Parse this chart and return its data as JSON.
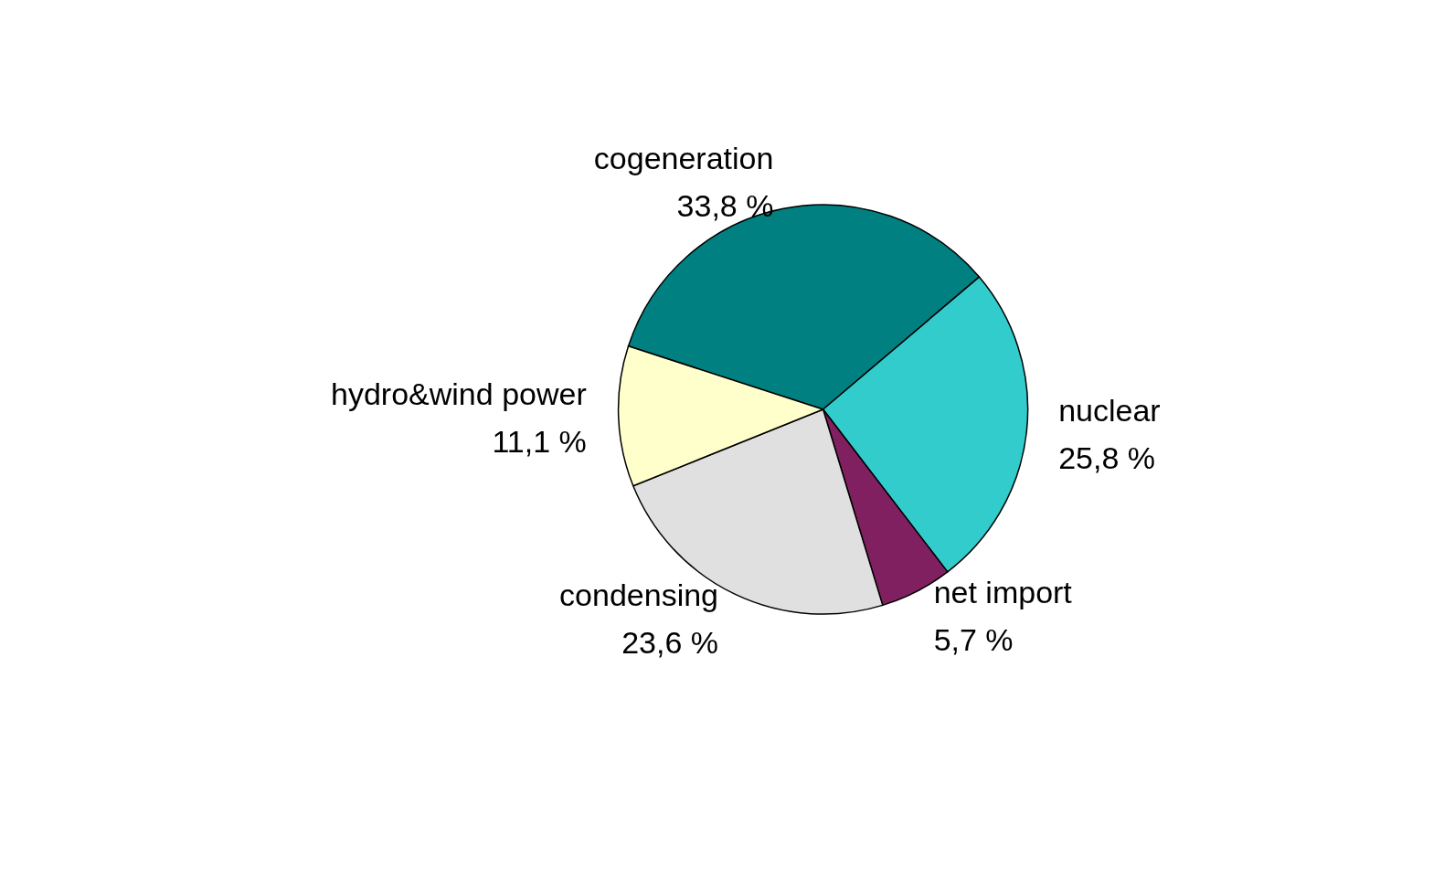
{
  "chart_data": {
    "type": "pie",
    "categories": [
      "cogeneration",
      "nuclear",
      "net import",
      "condensing",
      "hydro&wind power"
    ],
    "values": [
      33.8,
      25.8,
      5.7,
      23.6,
      11.1
    ],
    "value_labels": [
      "33,8 %",
      "25,8 %",
      "5,7 %",
      "23,6 %",
      "11,1 %"
    ],
    "colors": [
      "#008080",
      "#33cccc",
      "#802060",
      "#e0e0e0",
      "#ffffcc"
    ],
    "legend": false
  }
}
